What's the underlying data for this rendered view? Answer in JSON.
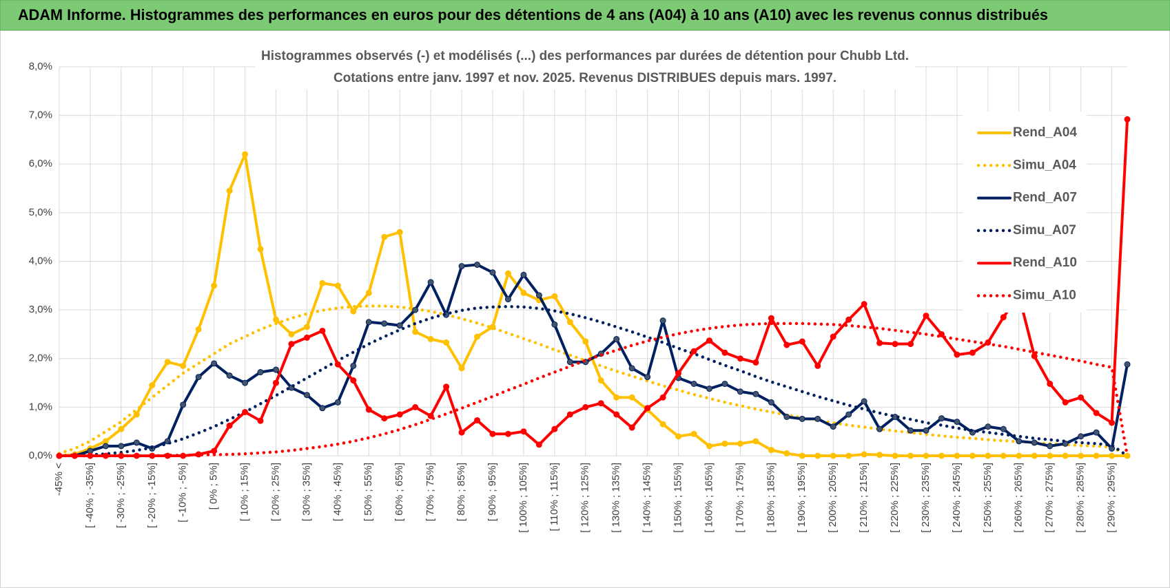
{
  "header": {
    "title": "ADAM Informe. Histogrammes des performances en euros pour des détentions de 4 ans (A04) à 10 ans (A10) avec les revenus connus distribués"
  },
  "chart_data": {
    "type": "line",
    "title": "Histogrammes observés (-) et modélisés (...) des performances par durées de détention pour Chubb Ltd.",
    "subtitle": "Cotations entre janv. 1997 et nov. 2025. Revenus DISTRIBUES depuis mars. 1997.",
    "categories": [
      "-45% <",
      null,
      "[ -40% ; -35%]",
      null,
      "[ -30% ; -25%]",
      null,
      "[ -20% ; -15%]",
      null,
      "[ -10% ; -5%]",
      null,
      "[ 0% ; 5%]",
      null,
      "[ 10% ; 15%]",
      null,
      "[ 20% ; 25%]",
      null,
      "[ 30% ; 35%]",
      null,
      "[ 40% ; 45%]",
      null,
      "[ 50% ; 55%]",
      null,
      "[ 60% ; 65%]",
      null,
      "[ 70% ; 75%]",
      null,
      "[ 80% ; 85%]",
      null,
      "[ 90% ; 95%]",
      null,
      "[ 100% ; 105%]",
      null,
      "[ 110% ; 115%]",
      null,
      "[ 120% ; 125%]",
      null,
      "[ 130% ; 135%]",
      null,
      "[ 140% ; 145%]",
      null,
      "[ 150% ; 155%]",
      null,
      "[ 160% ; 165%]",
      null,
      "[ 170% ; 175%]",
      null,
      "[ 180% ; 185%]",
      null,
      "[ 190% ; 195%]",
      null,
      "[ 200% ; 205%]",
      null,
      "[ 210% ; 215%]",
      null,
      "[ 220% ; 225%]",
      null,
      "[ 230% ; 235%]",
      null,
      "[ 240% ; 245%]",
      null,
      "[ 250% ; 255%]",
      null,
      "[ 260% ; 265%]",
      null,
      "[ 270% ; 275%]",
      null,
      "[ 280% ; 285%]",
      null,
      "[ 290% ; 295%]",
      null
    ],
    "series": [
      {
        "name": "Rend_A04",
        "color": "#ffc000",
        "style": "solid",
        "markers": true,
        "values": [
          0,
          0.03,
          0.15,
          0.3,
          0.55,
          0.85,
          1.45,
          1.93,
          1.85,
          2.6,
          3.5,
          5.45,
          6.2,
          4.25,
          2.8,
          2.5,
          2.65,
          3.55,
          3.5,
          2.97,
          3.35,
          4.5,
          4.6,
          2.55,
          2.4,
          2.33,
          1.8,
          2.45,
          2.65,
          3.75,
          3.35,
          3.2,
          3.28,
          2.75,
          2.35,
          1.55,
          1.2,
          1.2,
          0.95,
          0.65,
          0.4,
          0.45,
          0.2,
          0.25,
          0.25,
          0.3,
          0.12,
          0.05,
          0,
          0,
          0,
          0,
          0.03,
          0.02,
          0,
          0,
          0,
          0,
          0,
          0,
          0,
          0,
          0,
          0,
          0,
          0,
          0,
          0,
          0,
          0
        ]
      },
      {
        "name": "Simu_A04",
        "color": "#ffc000",
        "style": "dotted",
        "markers": false,
        "values": [
          0.05,
          0.15,
          0.3,
          0.5,
          0.7,
          0.95,
          1.2,
          1.45,
          1.7,
          1.9,
          2.1,
          2.3,
          2.45,
          2.6,
          2.72,
          2.83,
          2.92,
          2.99,
          3.04,
          3.07,
          3.08,
          3.08,
          3.06,
          3.02,
          2.97,
          2.9,
          2.82,
          2.73,
          2.63,
          2.52,
          2.41,
          2.3,
          2.18,
          2.07,
          1.96,
          1.85,
          1.74,
          1.64,
          1.54,
          1.44,
          1.35,
          1.26,
          1.18,
          1.1,
          1.03,
          0.96,
          0.9,
          0.84,
          0.78,
          0.73,
          0.68,
          0.63,
          0.59,
          0.55,
          0.51,
          0.48,
          0.44,
          0.41,
          0.38,
          0.36,
          0.33,
          0.31,
          0.29,
          0.27,
          0.25,
          0.23,
          0.21,
          0.2,
          0.18,
          0
        ]
      },
      {
        "name": "Rend_A07",
        "color": "#002060",
        "style": "solid",
        "markers": true,
        "values": [
          0,
          0,
          0.1,
          0.2,
          0.2,
          0.27,
          0.15,
          0.3,
          1.05,
          1.62,
          1.9,
          1.65,
          1.5,
          1.72,
          1.77,
          1.4,
          1.25,
          0.98,
          1.1,
          1.85,
          2.75,
          2.72,
          2.68,
          3.0,
          3.57,
          2.9,
          3.9,
          3.93,
          3.77,
          3.22,
          3.72,
          3.3,
          2.7,
          1.93,
          1.93,
          2.1,
          2.4,
          1.8,
          1.62,
          2.78,
          1.6,
          1.48,
          1.38,
          1.48,
          1.32,
          1.27,
          1.1,
          0.8,
          0.76,
          0.76,
          0.6,
          0.85,
          1.12,
          0.55,
          0.8,
          0.52,
          0.52,
          0.77,
          0.7,
          0.48,
          0.6,
          0.55,
          0.3,
          0.27,
          0.2,
          0.25,
          0.4,
          0.48,
          0.15,
          1.88
        ]
      },
      {
        "name": "Simu_A07",
        "color": "#002060",
        "style": "dotted",
        "markers": false,
        "values": [
          0,
          0.01,
          0.02,
          0.04,
          0.07,
          0.11,
          0.17,
          0.25,
          0.35,
          0.47,
          0.6,
          0.75,
          0.9,
          1.07,
          1.24,
          1.42,
          1.6,
          1.78,
          1.96,
          2.13,
          2.3,
          2.45,
          2.59,
          2.72,
          2.83,
          2.92,
          2.99,
          3.04,
          3.06,
          3.07,
          3.06,
          3.03,
          2.98,
          2.92,
          2.84,
          2.75,
          2.65,
          2.55,
          2.44,
          2.33,
          2.21,
          2.1,
          1.98,
          1.86,
          1.75,
          1.63,
          1.52,
          1.42,
          1.32,
          1.22,
          1.13,
          1.04,
          0.96,
          0.88,
          0.81,
          0.75,
          0.68,
          0.63,
          0.57,
          0.52,
          0.48,
          0.44,
          0.4,
          0.36,
          0.33,
          0.3,
          0.27,
          0.25,
          0.22,
          0
        ]
      },
      {
        "name": "Rend_A10",
        "color": "#ff0000",
        "style": "solid",
        "markers": true,
        "values": [
          0,
          0,
          0,
          0,
          0,
          0,
          0,
          0,
          0,
          0.03,
          0.1,
          0.62,
          0.9,
          0.72,
          1.5,
          2.3,
          2.43,
          2.57,
          1.88,
          1.55,
          0.95,
          0.77,
          0.85,
          1.0,
          0.82,
          1.42,
          0.48,
          0.73,
          0.45,
          0.45,
          0.5,
          0.23,
          0.55,
          0.85,
          1.0,
          1.08,
          0.85,
          0.58,
          0.98,
          1.2,
          1.7,
          2.15,
          2.37,
          2.12,
          2.0,
          1.92,
          2.83,
          2.28,
          2.35,
          1.85,
          2.45,
          2.8,
          3.12,
          2.32,
          2.3,
          2.3,
          2.88,
          2.5,
          2.08,
          2.12,
          2.33,
          2.85,
          3.3,
          2.05,
          1.48,
          1.1,
          1.2,
          0.88,
          0.68,
          6.92
        ]
      },
      {
        "name": "Simu_A10",
        "color": "#ff0000",
        "style": "dotted",
        "markers": false,
        "values": [
          0,
          0,
          0,
          0,
          0,
          0,
          0,
          0.01,
          0.01,
          0.02,
          0.02,
          0.03,
          0.04,
          0.06,
          0.08,
          0.11,
          0.15,
          0.19,
          0.24,
          0.3,
          0.37,
          0.45,
          0.54,
          0.64,
          0.75,
          0.86,
          0.98,
          1.1,
          1.22,
          1.35,
          1.47,
          1.6,
          1.72,
          1.84,
          1.96,
          2.07,
          2.17,
          2.27,
          2.36,
          2.44,
          2.51,
          2.57,
          2.62,
          2.66,
          2.69,
          2.71,
          2.72,
          2.72,
          2.72,
          2.71,
          2.7,
          2.68,
          2.65,
          2.62,
          2.58,
          2.54,
          2.5,
          2.45,
          2.4,
          2.35,
          2.3,
          2.25,
          2.19,
          2.13,
          2.07,
          2.01,
          1.95,
          1.88,
          1.82,
          0
        ]
      }
    ],
    "ylim": [
      0,
      8
    ],
    "yticks": [
      {
        "value": 0,
        "label": "0,0%"
      },
      {
        "value": 1,
        "label": "1,0%"
      },
      {
        "value": 2,
        "label": "2,0%"
      },
      {
        "value": 3,
        "label": "3,0%"
      },
      {
        "value": 4,
        "label": "4,0%"
      },
      {
        "value": 5,
        "label": "5,0%"
      },
      {
        "value": 6,
        "label": "6,0%"
      },
      {
        "value": 7,
        "label": "7,0%"
      },
      {
        "value": 8,
        "label": "8,0%"
      }
    ],
    "grid": true,
    "legend": "right"
  }
}
